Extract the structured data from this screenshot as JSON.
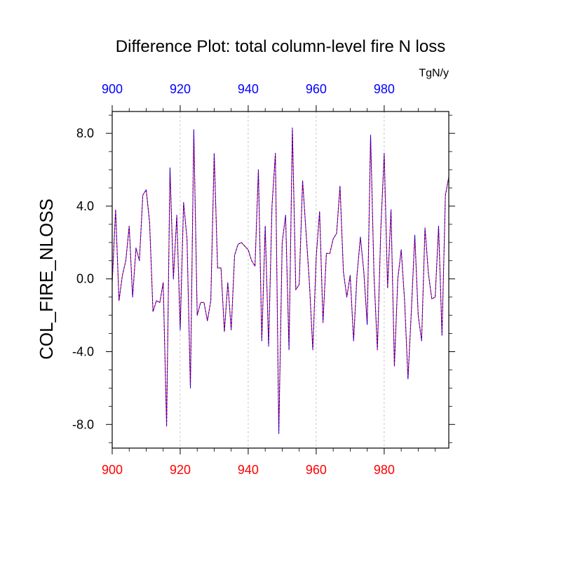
{
  "chart_data": {
    "type": "line",
    "title": "Difference Plot: total column-level fire N loss",
    "units": "TgN/y",
    "xlabel": "",
    "ylabel": "COL_FIRE_NLOSS",
    "xlim": [
      900,
      999
    ],
    "ylim": [
      -9.3,
      9.2
    ],
    "x_ticks": [
      900,
      920,
      940,
      960,
      980
    ],
    "x_tick_labels": [
      "900",
      "920",
      "940",
      "960",
      "980"
    ],
    "x_minor_step": 5,
    "y_ticks": [
      -8,
      -4,
      0,
      4,
      8
    ],
    "y_tick_labels": [
      "-8.0",
      "-4.0",
      "0.0",
      "4.0",
      "8.0"
    ],
    "y_minor_step": 1,
    "bottom_axis_label_color": "#ff0000",
    "top_axis_label_color": "#0000ff",
    "vertical_gridlines": true,
    "gridline_color": "#bbbbbb",
    "x": [
      900,
      901,
      902,
      903,
      904,
      905,
      906,
      907,
      908,
      909,
      910,
      911,
      912,
      913,
      914,
      915,
      916,
      917,
      918,
      919,
      920,
      921,
      922,
      923,
      924,
      925,
      926,
      927,
      928,
      929,
      930,
      931,
      932,
      933,
      934,
      935,
      936,
      937,
      938,
      939,
      940,
      941,
      942,
      943,
      944,
      945,
      946,
      947,
      948,
      949,
      950,
      951,
      952,
      953,
      954,
      955,
      956,
      957,
      958,
      959,
      960,
      961,
      962,
      963,
      964,
      965,
      966,
      967,
      968,
      969,
      970,
      971,
      972,
      973,
      974,
      975,
      976,
      977,
      978,
      979,
      980,
      981,
      982,
      983,
      984,
      985,
      986,
      987,
      988,
      989,
      990,
      991,
      992,
      993,
      994,
      995,
      996,
      997,
      998,
      999
    ],
    "series": [
      {
        "color": "#ff0000",
        "style": "solid",
        "values": [
          -0.2,
          3.8,
          -1.2,
          0.2,
          1.0,
          2.9,
          -1.0,
          1.7,
          1.0,
          4.6,
          4.9,
          3.1,
          -1.8,
          -1.2,
          -1.3,
          -0.2,
          -8.1,
          6.1,
          0.0,
          3.5,
          -2.8,
          4.2,
          2.2,
          -6.0,
          8.2,
          -2.0,
          -1.3,
          -1.3,
          -2.3,
          -1.2,
          6.9,
          0.6,
          0.6,
          -2.9,
          -0.2,
          -2.8,
          1.3,
          1.9,
          2.0,
          1.8,
          1.6,
          1.0,
          0.7,
          6.0,
          -3.4,
          2.9,
          -3.7,
          4.0,
          6.9,
          -8.5,
          2.0,
          3.5,
          -3.9,
          8.3,
          -0.6,
          -0.3,
          5.4,
          2.6,
          -0.2,
          -3.9,
          1.2,
          3.7,
          -2.4,
          1.4,
          1.4,
          2.2,
          2.5,
          5.1,
          0.4,
          -1.0,
          0.2,
          -3.4,
          0.2,
          2.3,
          0.4,
          -2.5,
          7.9,
          0.2,
          -3.9,
          2.7,
          6.9,
          -0.5,
          3.8,
          -4.8,
          0.0,
          1.6,
          -1.2,
          -5.5,
          -1.7,
          2.4,
          -2.0,
          -3.4,
          2.8,
          0.3,
          -1.1,
          -1.0,
          2.9,
          -3.1,
          4.6,
          5.6
        ]
      },
      {
        "color": "#0000ff",
        "style": "dashed",
        "values": [
          -0.2,
          3.8,
          -1.2,
          0.2,
          1.0,
          2.9,
          -1.0,
          1.7,
          1.0,
          4.6,
          4.9,
          3.1,
          -1.8,
          -1.2,
          -1.3,
          -0.2,
          -8.1,
          6.1,
          0.0,
          3.5,
          -2.8,
          4.2,
          2.2,
          -6.0,
          8.2,
          -2.0,
          -1.3,
          -1.3,
          -2.3,
          -1.2,
          6.9,
          0.6,
          0.6,
          -2.9,
          -0.2,
          -2.8,
          1.3,
          1.9,
          2.0,
          1.8,
          1.6,
          1.0,
          0.7,
          6.0,
          -3.4,
          2.9,
          -3.7,
          4.0,
          6.9,
          -8.5,
          2.0,
          3.5,
          -3.9,
          8.3,
          -0.6,
          -0.3,
          5.4,
          2.6,
          -0.2,
          -3.9,
          1.2,
          3.7,
          -2.4,
          1.4,
          1.4,
          2.2,
          2.5,
          5.1,
          0.4,
          -1.0,
          0.2,
          -3.4,
          0.2,
          2.3,
          0.4,
          -2.5,
          7.9,
          0.2,
          -3.9,
          2.7,
          6.9,
          -0.5,
          3.8,
          -4.8,
          0.0,
          1.6,
          -1.2,
          -5.5,
          -1.7,
          2.4,
          -2.0,
          -3.4,
          2.8,
          0.3,
          -1.1,
          -1.0,
          2.9,
          -3.1,
          4.6,
          5.6
        ]
      }
    ]
  }
}
